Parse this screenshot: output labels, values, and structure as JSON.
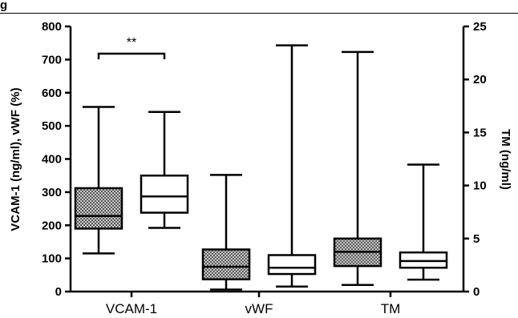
{
  "figure": {
    "label": "g"
  },
  "chart_data": {
    "type": "box",
    "categories": [
      "VCAM-1",
      "vWF",
      "TM"
    ],
    "ylabel_left": "VCAM-1 (ng/ml), vWF (%)",
    "ylabel_right": "TM (ng/ml)",
    "ylim_left": [
      0,
      800
    ],
    "ylim_right": [
      0,
      25
    ],
    "yticks_left": [
      "0",
      "100",
      "200",
      "300",
      "400",
      "500",
      "600",
      "700",
      "800"
    ],
    "yticks_right": [
      "0",
      "5",
      "10",
      "15",
      "20",
      "25"
    ],
    "annotation": {
      "text": "**",
      "between": [
        0,
        1
      ]
    },
    "boxes": [
      {
        "category": "VCAM-1",
        "fill": "hatched",
        "axis": "left",
        "min": 115,
        "q1": 190,
        "median": 228,
        "q3": 312,
        "max": 557
      },
      {
        "category": "VCAM-1",
        "fill": "white",
        "axis": "left",
        "min": 192,
        "q1": 238,
        "median": 287,
        "q3": 350,
        "max": 542
      },
      {
        "category": "vWF",
        "fill": "hatched",
        "axis": "left",
        "min": 6,
        "q1": 37,
        "median": 75,
        "q3": 127,
        "max": 352
      },
      {
        "category": "vWF",
        "fill": "white",
        "axis": "left",
        "min": 15,
        "q1": 53,
        "median": 72,
        "q3": 110,
        "max": 743
      },
      {
        "category": "TM",
        "fill": "hatched",
        "axis": "left",
        "min": 20,
        "q1": 77,
        "median": 120,
        "q3": 160,
        "max": 723
      },
      {
        "category": "TM",
        "fill": "white",
        "axis": "left",
        "min": 36,
        "q1": 72,
        "median": 92,
        "q3": 118,
        "max": 383
      }
    ]
  }
}
